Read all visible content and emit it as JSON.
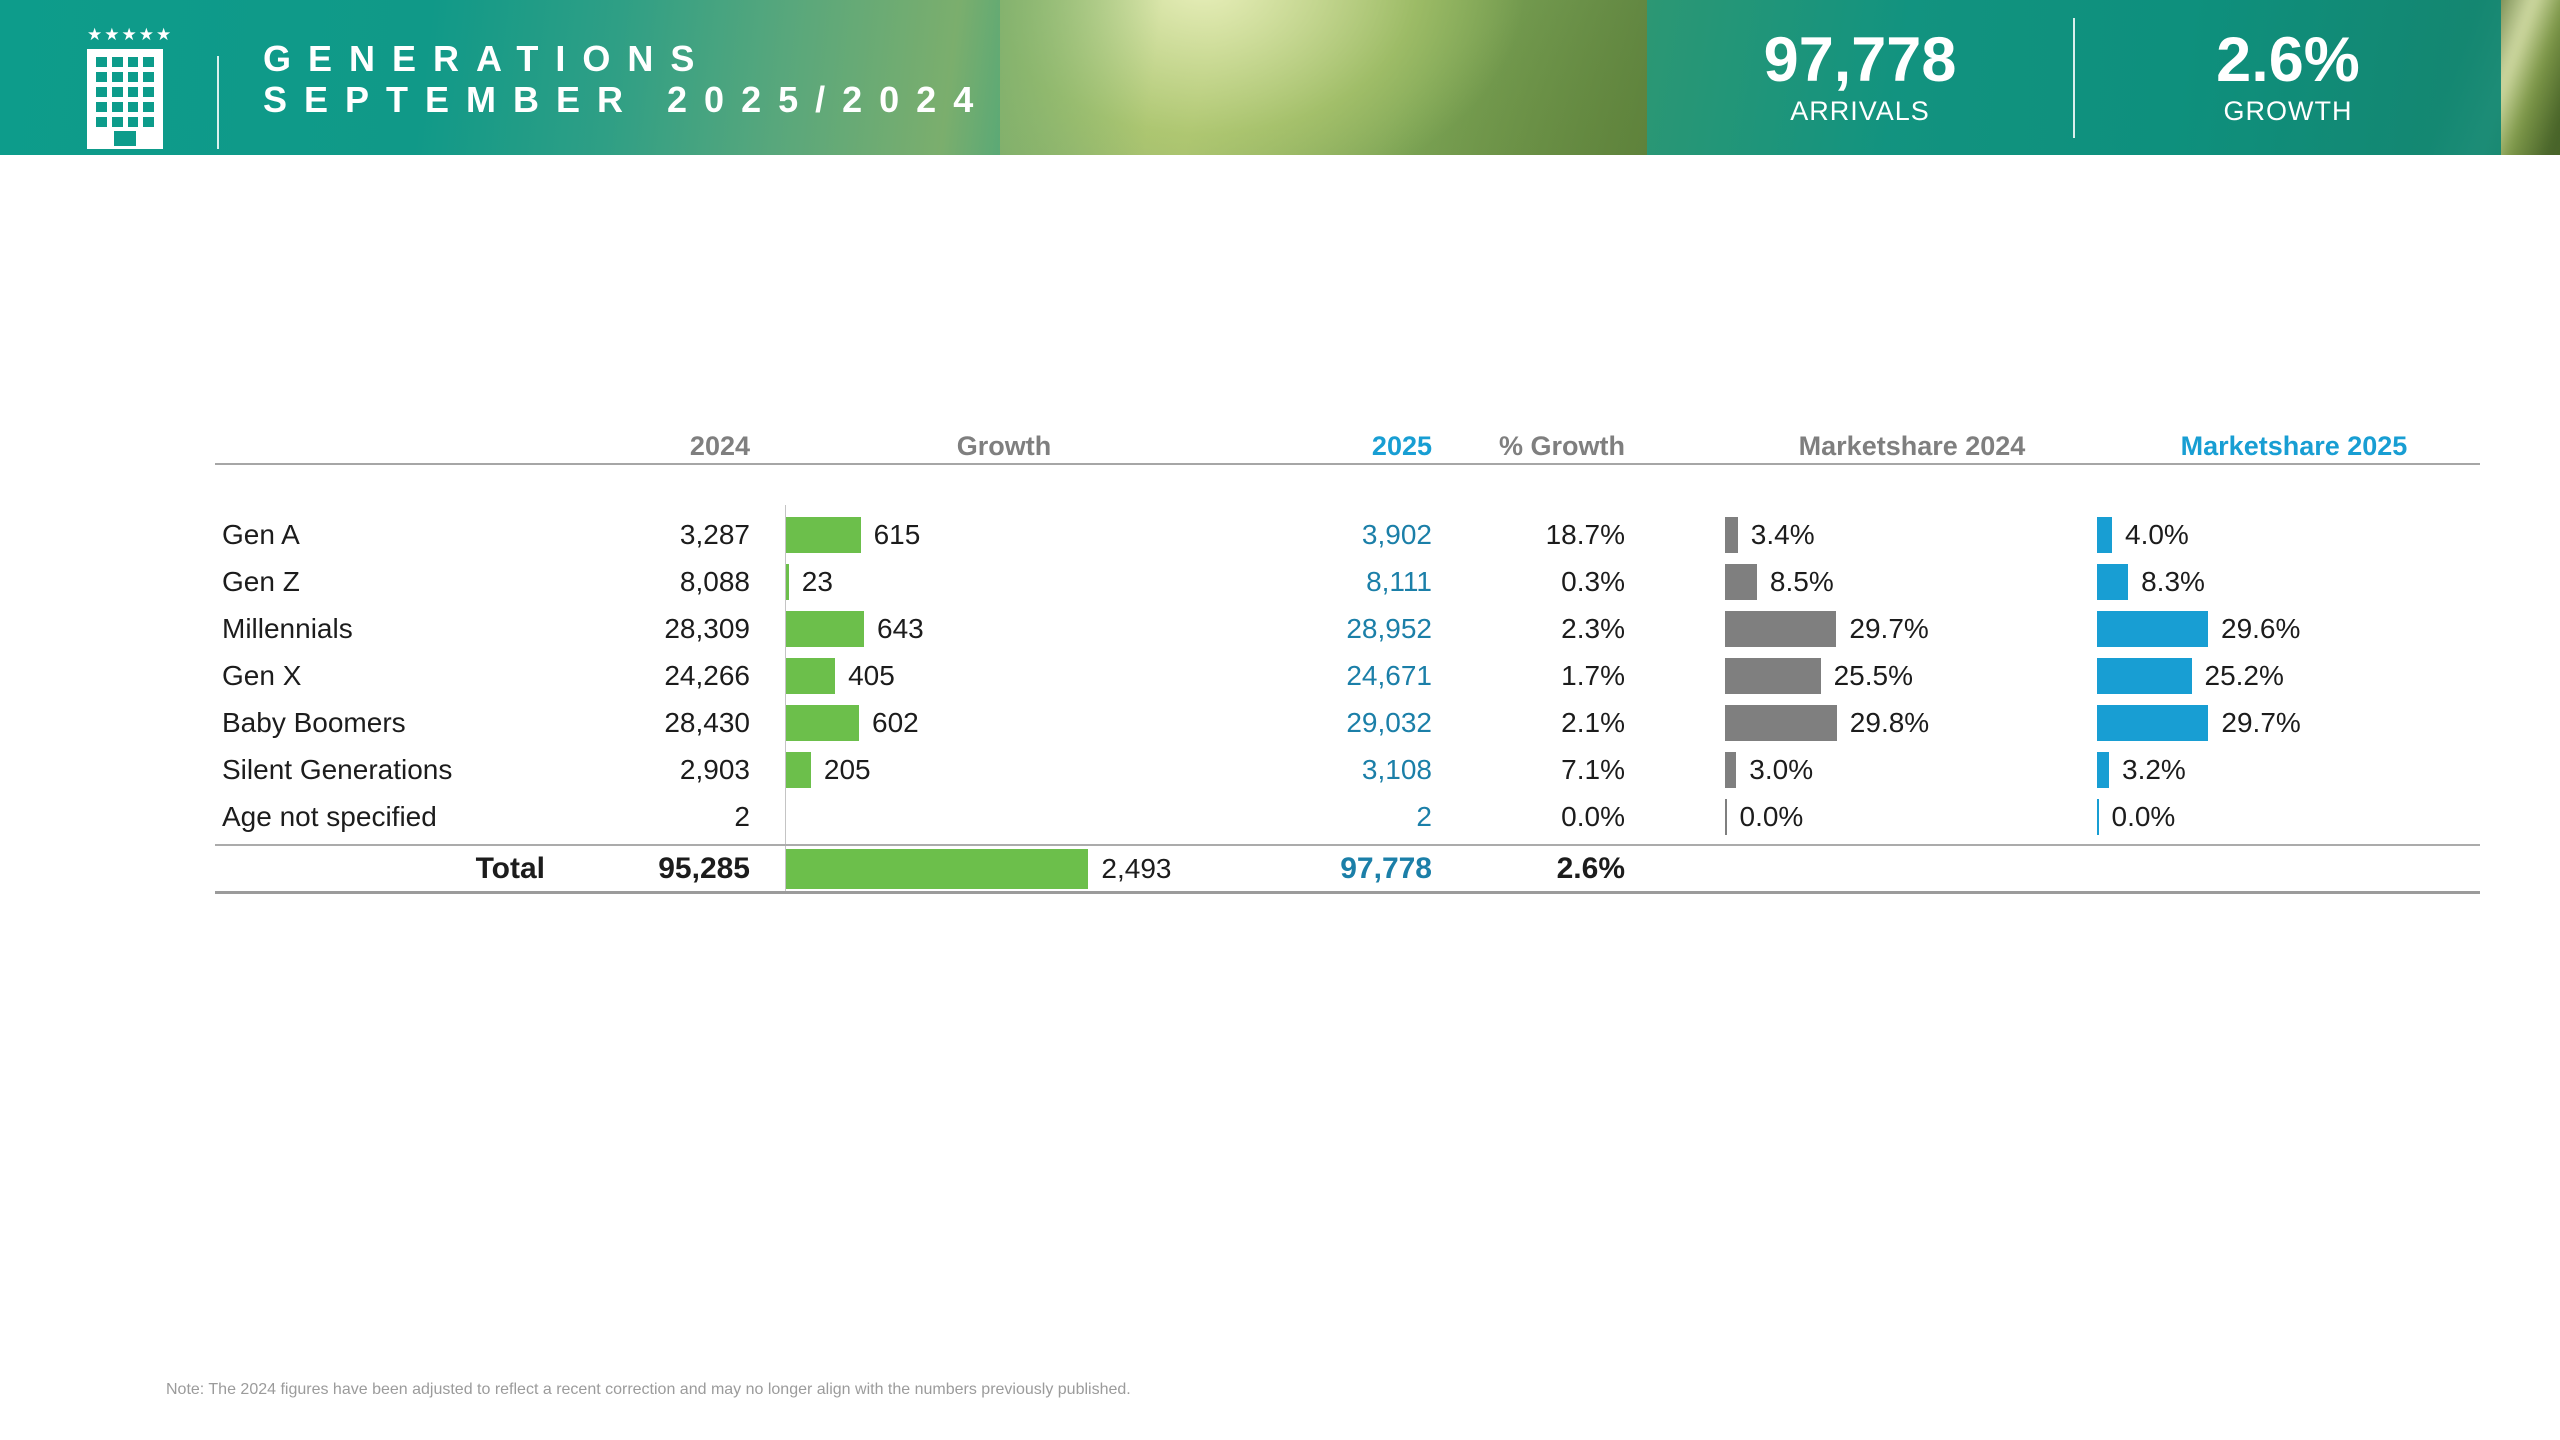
{
  "header": {
    "title_line1": "GENERATIONS",
    "title_line2": "SEPTEMBER 2025/2024",
    "logo_stars": "★★★★★",
    "stats": [
      {
        "value": "97,778",
        "label": "ARRIVALS"
      },
      {
        "value": "2.6%",
        "label": "GROWTH"
      }
    ]
  },
  "table": {
    "headers": {
      "y2024": "2024",
      "growth": "Growth",
      "y2025": "2025",
      "pct": "% Growth",
      "ms2024": "Marketshare 2024",
      "ms2025": "Marketshare 2025"
    },
    "rows": [
      {
        "label": "Gen A",
        "y2024": "3,287",
        "growth_value": 615,
        "growth_label": "615",
        "y2025": "3,902",
        "pct": "18.7%",
        "ms2024_value": 3.4,
        "ms2024_label": "3.4%",
        "ms2025_value": 4.0,
        "ms2025_label": "4.0%"
      },
      {
        "label": "Gen Z",
        "y2024": "8,088",
        "growth_value": 23,
        "growth_label": "23",
        "y2025": "8,111",
        "pct": "0.3%",
        "ms2024_value": 8.5,
        "ms2024_label": "8.5%",
        "ms2025_value": 8.3,
        "ms2025_label": "8.3%"
      },
      {
        "label": "Millennials",
        "y2024": "28,309",
        "growth_value": 643,
        "growth_label": "643",
        "y2025": "28,952",
        "pct": "2.3%",
        "ms2024_value": 29.7,
        "ms2024_label": "29.7%",
        "ms2025_value": 29.6,
        "ms2025_label": "29.6%"
      },
      {
        "label": "Gen X",
        "y2024": "24,266",
        "growth_value": 405,
        "growth_label": "405",
        "y2025": "24,671",
        "pct": "1.7%",
        "ms2024_value": 25.5,
        "ms2024_label": "25.5%",
        "ms2025_value": 25.2,
        "ms2025_label": "25.2%"
      },
      {
        "label": "Baby Boomers",
        "y2024": "28,430",
        "growth_value": 602,
        "growth_label": "602",
        "y2025": "29,032",
        "pct": "2.1%",
        "ms2024_value": 29.8,
        "ms2024_label": "29.8%",
        "ms2025_value": 29.7,
        "ms2025_label": "29.7%"
      },
      {
        "label": "Silent Generations",
        "y2024": "2,903",
        "growth_value": 205,
        "growth_label": "205",
        "y2025": "3,108",
        "pct": "7.1%",
        "ms2024_value": 3.0,
        "ms2024_label": "3.0%",
        "ms2025_value": 3.2,
        "ms2025_label": "3.2%"
      },
      {
        "label": "Age not specified",
        "y2024": "2",
        "growth_value": 0,
        "growth_label": "",
        "y2025": "2",
        "pct": "0.0%",
        "ms2024_value": 0.0,
        "ms2024_label": "0.0%",
        "ms2025_value": 0.0,
        "ms2025_label": "0.0%"
      }
    ],
    "total": {
      "label": "Total",
      "y2024": "95,285",
      "growth_value": 2493,
      "growth_label": "2,493",
      "y2025": "97,778",
      "pct": "2.6%"
    }
  },
  "note": "Note: The 2024 figures have been adjusted to reflect a recent correction and may no longer align with the numbers previously published.",
  "colors": {
    "teal": "#0D9C8B",
    "green_bar": "#6CBF4B",
    "gray_bar": "#7F7F7F",
    "blue_bright": "#189ED3",
    "blue_text": "#1B7FA8",
    "header_gray": "#7F7F7F"
  },
  "chart_data": {
    "type": "table",
    "title": "GENERATIONS SEPTEMBER 2025/2024",
    "categories": [
      "Gen A",
      "Gen Z",
      "Millennials",
      "Gen X",
      "Baby Boomers",
      "Silent Generations",
      "Age not specified"
    ],
    "series": [
      {
        "name": "2024",
        "values": [
          3287,
          8088,
          28309,
          24266,
          28430,
          2903,
          2
        ]
      },
      {
        "name": "Growth",
        "values": [
          615,
          23,
          643,
          405,
          602,
          205,
          0
        ]
      },
      {
        "name": "2025",
        "values": [
          3902,
          8111,
          28952,
          24671,
          29032,
          3108,
          2
        ]
      },
      {
        "name": "% Growth",
        "values": [
          18.7,
          0.3,
          2.3,
          1.7,
          2.1,
          7.1,
          0.0
        ]
      },
      {
        "name": "Marketshare 2024",
        "values": [
          3.4,
          8.5,
          29.7,
          25.5,
          29.8,
          3.0,
          0.0
        ]
      },
      {
        "name": "Marketshare 2025",
        "values": [
          4.0,
          8.3,
          29.6,
          25.2,
          29.7,
          3.2,
          0.0
        ]
      }
    ],
    "totals": {
      "2024": 95285,
      "Growth": 2493,
      "2025": 97778,
      "% Growth": 2.6
    },
    "legend_position": "none",
    "grid": false,
    "bar_colors": {
      "Growth": "#6CBF4B",
      "Marketshare 2024": "#7F7F7F",
      "Marketshare 2025": "#189ED3"
    }
  }
}
